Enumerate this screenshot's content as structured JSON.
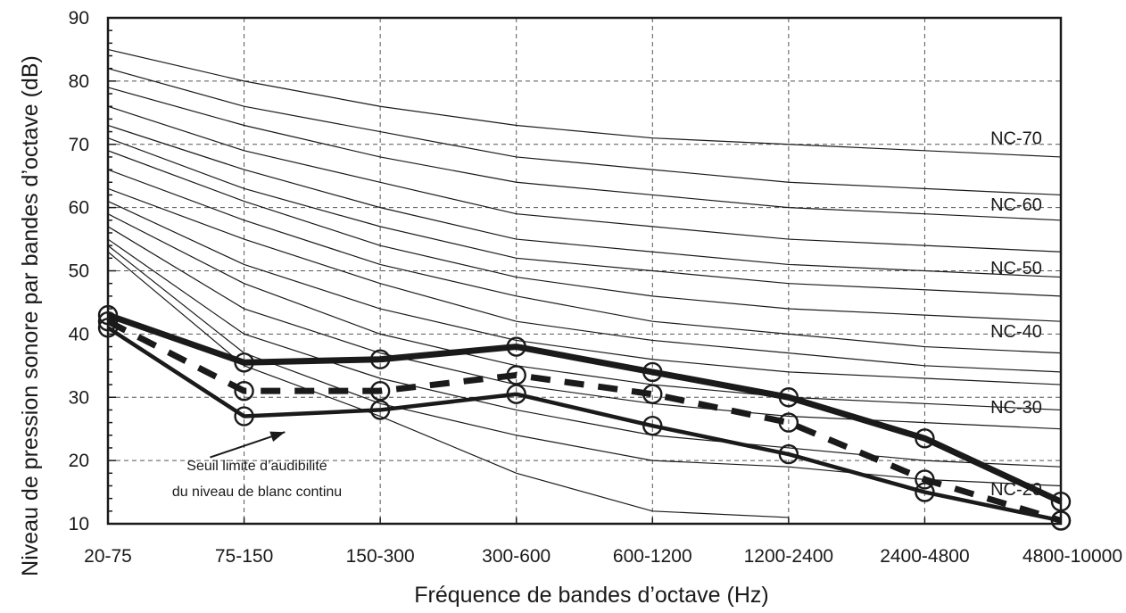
{
  "chart_data": {
    "type": "line",
    "title": "",
    "xlabel": "Fréquence de bandes d’octave (Hz)",
    "ylabel": "Niveau de pression sonore par bandes d’octave (dB)",
    "categories": [
      "20-75",
      "75-150",
      "150-300",
      "300-600",
      "600-1200",
      "1200-2400",
      "2400-4800",
      "4800-10000"
    ],
    "yticks": [
      "10",
      "20",
      "30",
      "40",
      "50",
      "60",
      "70",
      "80",
      "90"
    ],
    "ylim": [
      10,
      90
    ],
    "grid": "dashed",
    "nc_curves": [
      {
        "values": [
          85,
          80,
          76,
          73,
          71,
          70,
          69,
          68
        ]
      },
      {
        "values": [
          82,
          76,
          72,
          68,
          66,
          64,
          63,
          62
        ]
      },
      {
        "values": [
          79,
          73,
          68,
          64,
          62,
          60,
          59,
          58
        ]
      },
      {
        "values": [
          76,
          69,
          64,
          59,
          57,
          55,
          54,
          53
        ]
      },
      {
        "values": [
          73,
          66,
          60,
          55,
          53,
          51,
          50,
          49
        ]
      },
      {
        "values": [
          71,
          63,
          57,
          52,
          50,
          48,
          47,
          46
        ]
      },
      {
        "values": [
          69,
          61,
          54,
          49,
          46,
          44,
          43,
          42
        ]
      },
      {
        "values": [
          66,
          58,
          51,
          46,
          42,
          40,
          38,
          37
        ]
      },
      {
        "values": [
          63,
          55,
          48,
          42,
          39,
          37,
          35,
          34
        ]
      },
      {
        "values": [
          61,
          51,
          44,
          39,
          36,
          34,
          33,
          32
        ]
      },
      {
        "values": [
          59,
          48,
          40,
          35,
          32,
          30,
          29,
          28
        ]
      },
      {
        "values": [
          57,
          44,
          37,
          32,
          29,
          27,
          26,
          25
        ]
      },
      {
        "values": [
          55,
          40,
          33,
          28,
          24,
          22,
          20,
          19
        ]
      },
      {
        "values": [
          54,
          37,
          29,
          24,
          20,
          19,
          17,
          16
        ]
      },
      {
        "values": [
          53,
          35,
          27,
          18,
          12,
          11,
          null,
          null
        ]
      }
    ],
    "nc_labels": [
      {
        "text": "NC-70",
        "value": 71
      },
      {
        "text": "NC-60",
        "value": 60.5
      },
      {
        "text": "NC-50",
        "value": 50.5
      },
      {
        "text": "NC-40",
        "value": 40.5
      },
      {
        "text": "NC-30",
        "value": 28.5
      },
      {
        "text": "NC-20",
        "value": 15.5
      }
    ],
    "series": [
      {
        "style": "thick",
        "values": [
          43,
          35.5,
          36,
          38,
          34,
          30,
          23.5,
          13.5
        ]
      },
      {
        "style": "dashed",
        "values": [
          42,
          31,
          31,
          33.5,
          30.5,
          26,
          17,
          10.5
        ]
      },
      {
        "style": "solid",
        "values": [
          41,
          27,
          28,
          30.5,
          25.5,
          21,
          15,
          10.5
        ]
      }
    ],
    "annotation": {
      "lines": [
        "Seuil limite d’audibilité",
        "du niveau de blanc continu"
      ],
      "arrow_from": [
        0.75,
        20.5
      ],
      "arrow_to": [
        1.3,
        24.5
      ]
    }
  }
}
